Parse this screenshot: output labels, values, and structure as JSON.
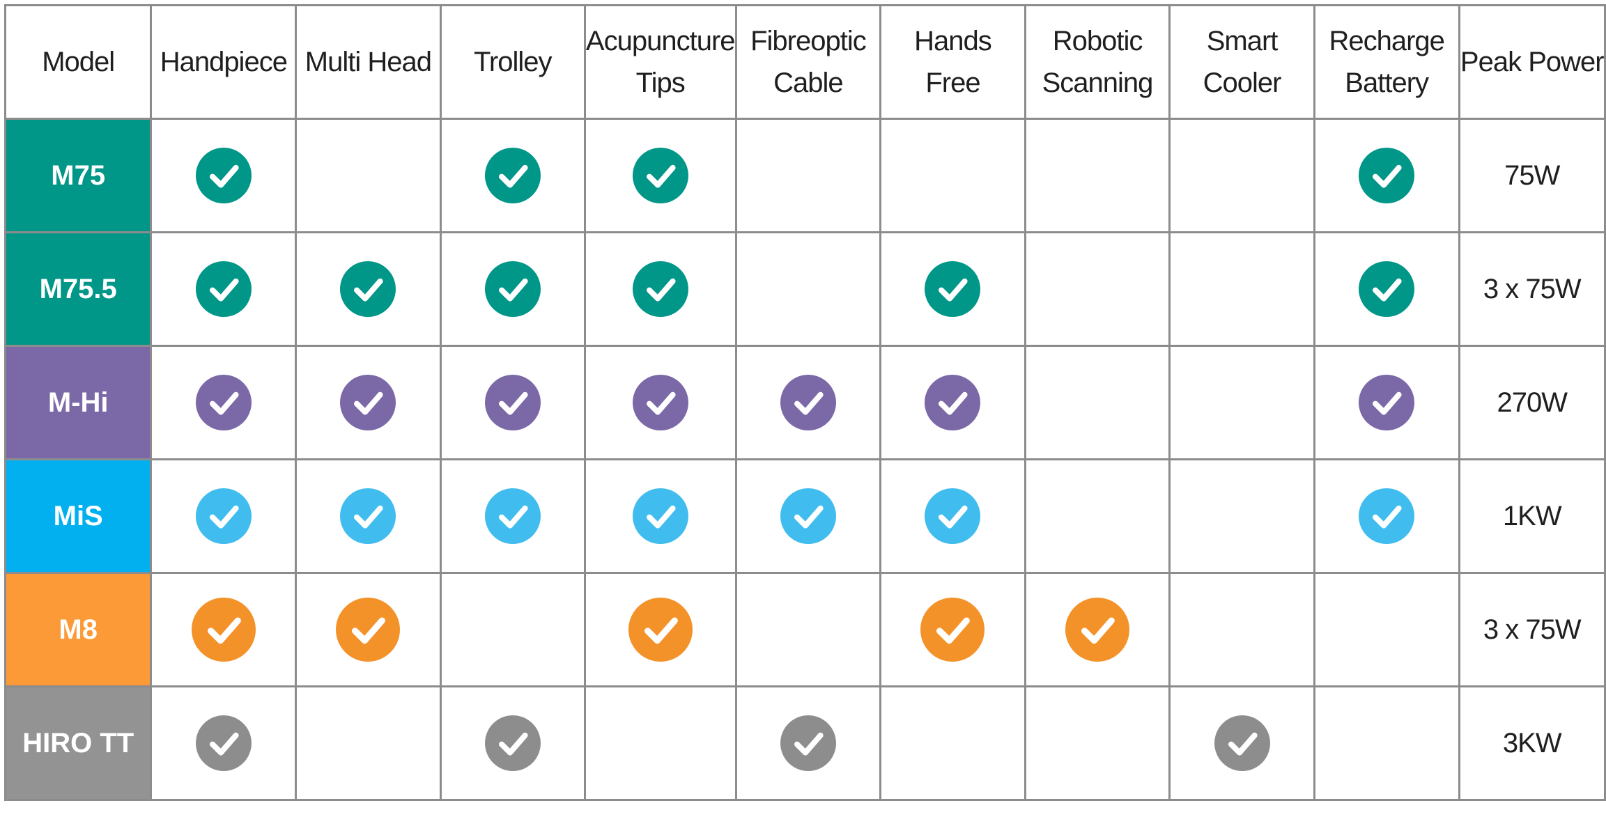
{
  "table": {
    "headers": [
      {
        "key": "model",
        "label": "Model"
      },
      {
        "key": "handpiece",
        "label": "Handpiece"
      },
      {
        "key": "multi_head",
        "label": "Multi Head"
      },
      {
        "key": "trolley",
        "label": "Trolley"
      },
      {
        "key": "acupuncture_tips",
        "label": "Acupuncture Tips"
      },
      {
        "key": "fibreoptic_cable",
        "label": "Fibreoptic Cable"
      },
      {
        "key": "hands_free",
        "label": "Hands Free"
      },
      {
        "key": "robotic_scanning",
        "label": "Robotic Scanning"
      },
      {
        "key": "smart_cooler",
        "label": "Smart Cooler"
      },
      {
        "key": "recharge_battery",
        "label": "Recharge Battery"
      },
      {
        "key": "peak_power",
        "label": "Peak Power"
      }
    ],
    "header_lines": [
      [
        "Model"
      ],
      [
        "Handpiece"
      ],
      [
        "Multi Head"
      ],
      [
        "Trolley"
      ],
      [
        "Acupuncture",
        "Tips"
      ],
      [
        "Fibreoptic",
        "Cable"
      ],
      [
        "Hands",
        "Free"
      ],
      [
        "Robotic",
        "Scanning"
      ],
      [
        "Smart",
        "Cooler"
      ],
      [
        "Recharge",
        "Battery"
      ],
      [
        "Peak Power"
      ]
    ],
    "rows": [
      {
        "model": "M75",
        "color": "#009688",
        "checks": [
          true,
          false,
          true,
          true,
          false,
          false,
          false,
          false,
          true
        ],
        "check_size": "small",
        "peak_power": "75W"
      },
      {
        "model": "M75.5",
        "color": "#009688",
        "checks": [
          true,
          true,
          true,
          true,
          false,
          true,
          false,
          false,
          true
        ],
        "check_size": "small",
        "peak_power": "3 x 75W"
      },
      {
        "model": "M-Hi",
        "color": "#7b68a6",
        "checks": [
          true,
          true,
          true,
          true,
          true,
          true,
          false,
          false,
          true
        ],
        "check_size": "small",
        "peak_power": "270W"
      },
      {
        "model": "MiS",
        "color": "#03b0ef",
        "check_color": "#40bdee",
        "checks": [
          true,
          true,
          true,
          true,
          true,
          true,
          false,
          false,
          true
        ],
        "check_size": "small",
        "peak_power": "1KW"
      },
      {
        "model": "M8",
        "color": "#fb9a37",
        "check_color": "#f4922a",
        "checks": [
          true,
          true,
          false,
          true,
          false,
          true,
          true,
          false,
          false
        ],
        "check_size": "large",
        "peak_power": "3 x 75W"
      },
      {
        "model": "HIRO TT",
        "color": "#939393",
        "check_color": "#8d8d8d",
        "checks": [
          true,
          false,
          true,
          false,
          true,
          false,
          false,
          true,
          false
        ],
        "check_size": "small",
        "peak_power": "3KW"
      }
    ]
  },
  "icons": {
    "check": "check-circle-icon"
  }
}
